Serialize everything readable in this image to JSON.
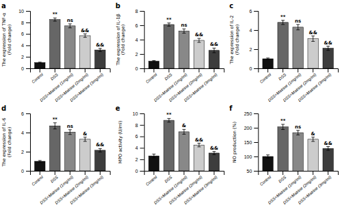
{
  "chart_data": [
    {
      "type": "bar",
      "title": "a",
      "ylabel": "The expression of TNF-α\n(Fold change)",
      "categories": [
        "Control",
        "DSS",
        "DSS+Matrine (1mg/ml)",
        "DSS+Matrine (2mg/ml)",
        "DSS+Matrine (3mg/ml)"
      ],
      "values": [
        1.0,
        8.5,
        7.4,
        5.7,
        3.2
      ],
      "errors": [
        0.08,
        0.28,
        0.35,
        0.3,
        0.28
      ],
      "annotations": [
        null,
        "**",
        "ns",
        "&&",
        "&&"
      ],
      "colors": [
        "#111111",
        "#666666",
        "#888888",
        "#cccccc",
        "#3d3d3d"
      ],
      "ylim": [
        0,
        10
      ],
      "yticks": [
        0,
        2,
        4,
        6,
        8,
        10
      ]
    },
    {
      "type": "bar",
      "title": "b",
      "ylabel": "The expression of IL-1β\n(Fold change)",
      "categories": [
        "Control",
        "DSS",
        "DSS+Matrine (1mg/ml)",
        "DSS+Matrine (2mg/ml)",
        "DSS+Matrine (3mg/ml)"
      ],
      "values": [
        1.0,
        6.1,
        5.2,
        3.9,
        2.5
      ],
      "errors": [
        0.08,
        0.22,
        0.3,
        0.28,
        0.32
      ],
      "annotations": [
        null,
        "**",
        "ns",
        "&&",
        "&&"
      ],
      "colors": [
        "#111111",
        "#666666",
        "#888888",
        "#cccccc",
        "#3d3d3d"
      ],
      "ylim": [
        0,
        8
      ],
      "yticks": [
        0,
        2,
        4,
        6,
        8
      ]
    },
    {
      "type": "bar",
      "title": "c",
      "ylabel": "The expression of IL-2\n(Fold change)",
      "categories": [
        "Control",
        "DSS",
        "DSS+Matrine (1mg/ml)",
        "DSS+Matrine (2mg/ml)",
        "DSS+Matrine (3mg/ml)"
      ],
      "values": [
        1.0,
        4.8,
        4.3,
        3.1,
        2.1
      ],
      "errors": [
        0.08,
        0.22,
        0.28,
        0.28,
        0.22
      ],
      "annotations": [
        null,
        "**",
        "ns",
        "&&",
        "&&"
      ],
      "colors": [
        "#111111",
        "#666666",
        "#888888",
        "#cccccc",
        "#3d3d3d"
      ],
      "ylim": [
        0,
        6
      ],
      "yticks": [
        0,
        2,
        4,
        6
      ]
    },
    {
      "type": "bar",
      "title": "d",
      "ylabel": "The expression of IL-6\n(Fold change)",
      "categories": [
        "Control",
        "DSS",
        "DSS+Matrine (1mg/ml)",
        "DSS+Matrine (2mg/ml)",
        "DSS+Matrine (3mg/ml)"
      ],
      "values": [
        1.0,
        4.7,
        4.05,
        3.3,
        2.15
      ],
      "errors": [
        0.08,
        0.32,
        0.25,
        0.22,
        0.18
      ],
      "annotations": [
        null,
        "**",
        "ns",
        "&",
        "&&"
      ],
      "colors": [
        "#111111",
        "#666666",
        "#888888",
        "#cccccc",
        "#3d3d3d"
      ],
      "ylim": [
        0,
        6
      ],
      "yticks": [
        0,
        2,
        4,
        6
      ]
    },
    {
      "type": "bar",
      "title": "e",
      "ylabel": "MPO activity (U/ml)",
      "categories": [
        "Control",
        "DSS",
        "DSS+Matrine (1mg/ml)",
        "DSS+Matrine (2mg/ml)",
        "DSS+Matrine (3mg/ml)"
      ],
      "values": [
        2.6,
        8.8,
        6.8,
        4.5,
        3.1
      ],
      "errors": [
        0.32,
        0.32,
        0.42,
        0.32,
        0.28
      ],
      "annotations": [
        null,
        "**",
        "&",
        "&&",
        "&&"
      ],
      "colors": [
        "#111111",
        "#666666",
        "#888888",
        "#cccccc",
        "#3d3d3d"
      ],
      "ylim": [
        0,
        10
      ],
      "yticks": [
        0,
        2,
        4,
        6,
        8,
        10
      ]
    },
    {
      "type": "bar",
      "title": "f",
      "ylabel": "NO production (%)",
      "categories": [
        "Control",
        "DSS",
        "DSS+Matrine (1mg/ml)",
        "DSS+Matrine (2mg/ml)",
        "DSS+Matrine (3mg/ml)"
      ],
      "values": [
        100,
        203,
        183,
        160,
        128
      ],
      "errors": [
        5.5,
        9,
        8,
        7.5,
        6.5
      ],
      "annotations": [
        null,
        "**",
        "ns",
        "&",
        "&&"
      ],
      "colors": [
        "#111111",
        "#666666",
        "#888888",
        "#cccccc",
        "#3d3d3d"
      ],
      "ylim": [
        50,
        250
      ],
      "yticks": [
        50,
        100,
        150,
        200,
        250
      ]
    }
  ]
}
